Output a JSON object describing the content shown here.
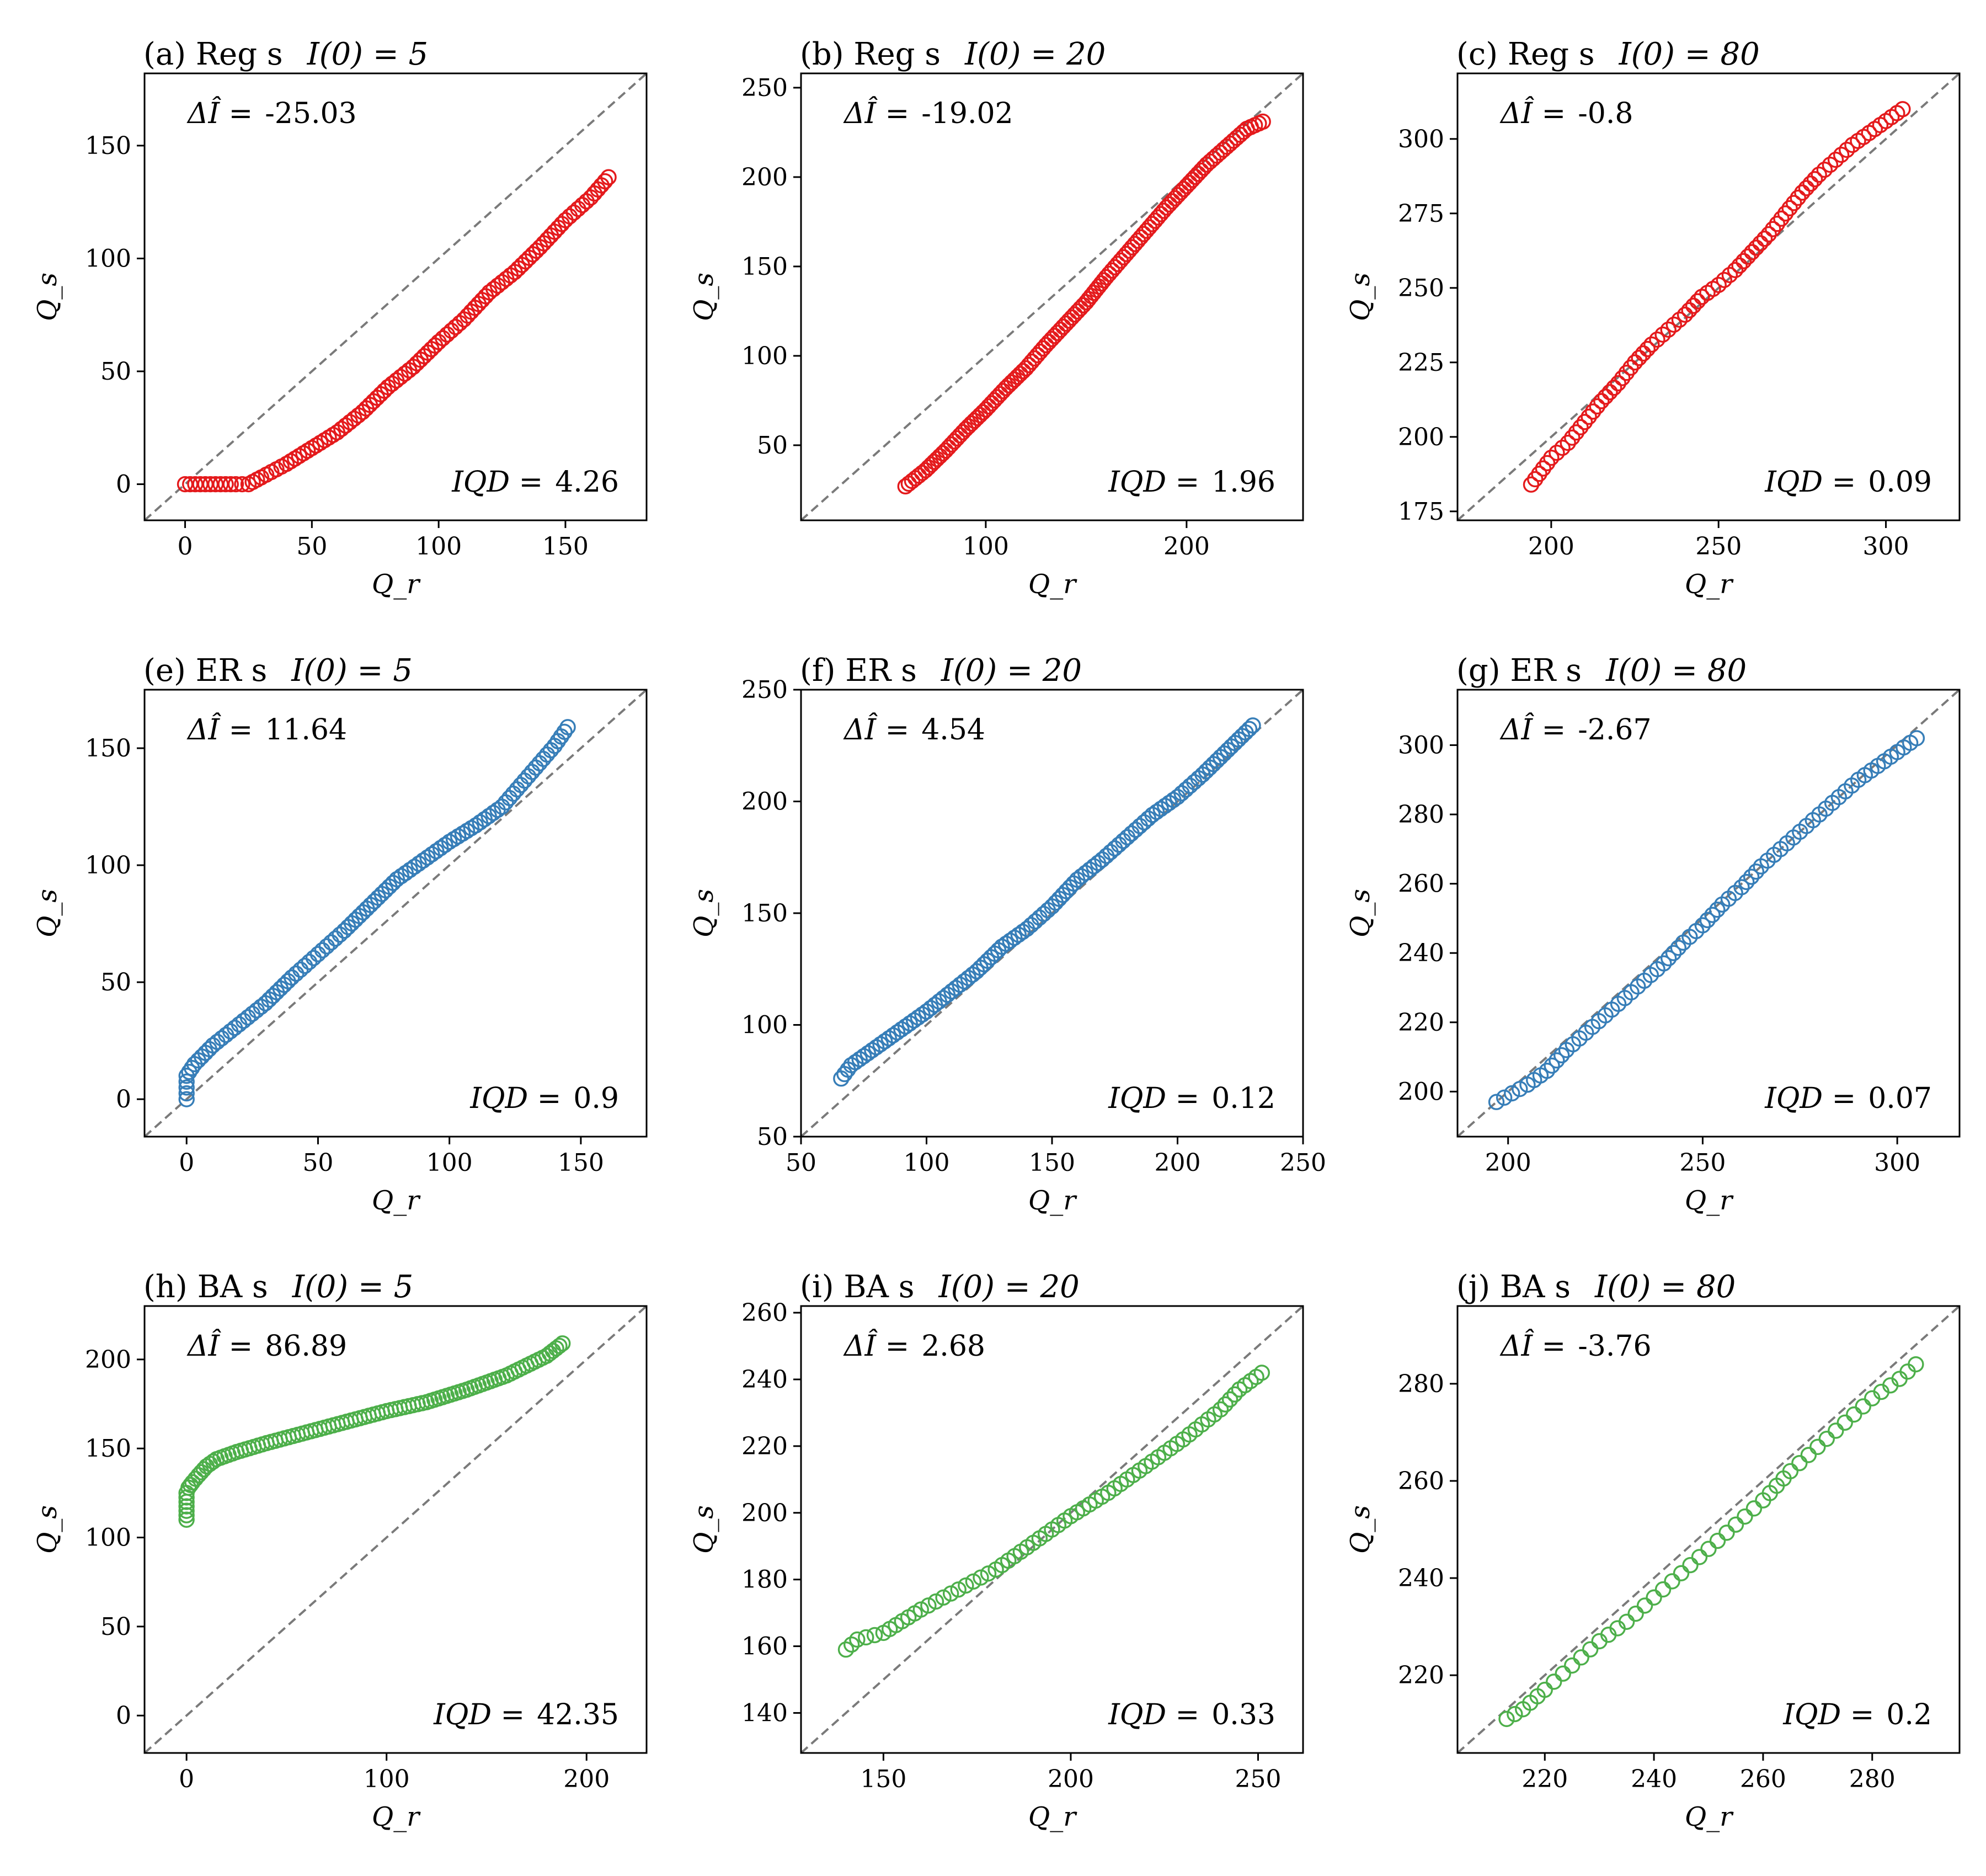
{
  "figure": {
    "marker": "open-circle",
    "diagonal_style": "dashed",
    "diagonal_color": "#7a7a7a"
  },
  "colors": {
    "Reg": "#e41a1c",
    "ER": "#377eb8",
    "BA": "#4daf4a"
  },
  "chart_data": [
    {
      "type": "scatter",
      "panel": "(a)",
      "title_prefix": "(a) Reg s",
      "init_label": "I(0) = 5",
      "xlabel": "Q_r",
      "ylabel": "Q_s",
      "xlim": [
        -16,
        182
      ],
      "ylim": [
        -16,
        182
      ],
      "xticks": [
        0,
        50,
        100,
        150
      ],
      "yticks": [
        0,
        50,
        100,
        150
      ],
      "delta_label": "ΔÎ =",
      "delta_value": "-25.03",
      "iqd_label": "IQD =",
      "iqd_value": "4.26",
      "color": "Reg",
      "curve": [
        [
          0,
          0
        ],
        [
          10,
          0
        ],
        [
          20,
          0
        ],
        [
          25,
          0
        ],
        [
          30,
          3
        ],
        [
          40,
          9
        ],
        [
          50,
          16
        ],
        [
          60,
          23
        ],
        [
          70,
          32
        ],
        [
          80,
          43
        ],
        [
          90,
          52
        ],
        [
          100,
          63
        ],
        [
          110,
          73
        ],
        [
          120,
          85
        ],
        [
          130,
          94
        ],
        [
          140,
          105
        ],
        [
          150,
          117
        ],
        [
          160,
          127
        ],
        [
          167,
          136
        ]
      ]
    },
    {
      "type": "scatter",
      "panel": "(b)",
      "title_prefix": "(b) Reg s",
      "init_label": "I(0) = 20",
      "xlabel": "Q_r",
      "ylabel": "Q_s",
      "xlim": [
        8,
        258
      ],
      "ylim": [
        8,
        258
      ],
      "xticks": [
        100,
        200
      ],
      "yticks": [
        50,
        100,
        150,
        200,
        250
      ],
      "delta_label": "ΔÎ =",
      "delta_value": "-19.02",
      "iqd_label": "IQD =",
      "iqd_value": "1.96",
      "color": "Reg",
      "curve": [
        [
          60,
          27
        ],
        [
          70,
          36
        ],
        [
          80,
          47
        ],
        [
          90,
          59
        ],
        [
          100,
          70
        ],
        [
          110,
          82
        ],
        [
          120,
          93
        ],
        [
          130,
          106
        ],
        [
          140,
          118
        ],
        [
          150,
          130
        ],
        [
          160,
          144
        ],
        [
          170,
          157
        ],
        [
          180,
          170
        ],
        [
          190,
          183
        ],
        [
          200,
          195
        ],
        [
          210,
          207
        ],
        [
          220,
          217
        ],
        [
          230,
          227
        ],
        [
          238,
          231
        ]
      ]
    },
    {
      "type": "scatter",
      "panel": "(c)",
      "title_prefix": "(c) Reg s",
      "init_label": "I(0) = 80",
      "xlabel": "Q_r",
      "ylabel": "Q_s",
      "xlim": [
        172,
        322
      ],
      "ylim": [
        172,
        322
      ],
      "xticks": [
        200,
        250,
        300
      ],
      "yticks": [
        175,
        200,
        225,
        250,
        275,
        300
      ],
      "delta_label": "ΔÎ =",
      "delta_value": "-0.8",
      "iqd_label": "IQD =",
      "iqd_value": "0.09",
      "color": "Reg",
      "curve": [
        [
          194,
          184
        ],
        [
          200,
          193
        ],
        [
          205,
          198
        ],
        [
          210,
          205
        ],
        [
          215,
          212
        ],
        [
          220,
          218
        ],
        [
          225,
          225
        ],
        [
          230,
          231
        ],
        [
          235,
          236
        ],
        [
          240,
          241
        ],
        [
          245,
          247
        ],
        [
          250,
          251
        ],
        [
          255,
          256
        ],
        [
          260,
          262
        ],
        [
          265,
          268
        ],
        [
          270,
          275
        ],
        [
          275,
          282
        ],
        [
          280,
          288
        ],
        [
          285,
          293
        ],
        [
          290,
          298
        ],
        [
          295,
          302
        ],
        [
          300,
          306
        ],
        [
          305,
          310
        ]
      ]
    },
    {
      "type": "scatter",
      "panel": "(e)",
      "title_prefix": "(e) ER s",
      "init_label": "I(0) = 5",
      "xlabel": "Q_r",
      "ylabel": "Q_s",
      "xlim": [
        -16,
        175
      ],
      "ylim": [
        -16,
        175
      ],
      "xticks": [
        0,
        50,
        100,
        150
      ],
      "yticks": [
        0,
        50,
        100,
        150
      ],
      "delta_label": "ΔÎ =",
      "delta_value": "11.64",
      "iqd_label": "IQD =",
      "iqd_value": "0.9",
      "color": "ER",
      "curve": [
        [
          0,
          0
        ],
        [
          0,
          5
        ],
        [
          0,
          10
        ],
        [
          3,
          15
        ],
        [
          10,
          23
        ],
        [
          20,
          32
        ],
        [
          30,
          41
        ],
        [
          40,
          52
        ],
        [
          50,
          62
        ],
        [
          60,
          72
        ],
        [
          70,
          83
        ],
        [
          80,
          94
        ],
        [
          90,
          102
        ],
        [
          100,
          110
        ],
        [
          110,
          117
        ],
        [
          120,
          125
        ],
        [
          130,
          138
        ],
        [
          140,
          151
        ],
        [
          145,
          159
        ]
      ]
    },
    {
      "type": "scatter",
      "panel": "(f)",
      "title_prefix": "(f) ER s",
      "init_label": "I(0) = 20",
      "xlabel": "Q_r",
      "ylabel": "Q_s",
      "xlim": [
        50,
        250
      ],
      "ylim": [
        50,
        250
      ],
      "xticks": [
        50,
        100,
        150,
        200,
        250
      ],
      "yticks": [
        50,
        100,
        150,
        200,
        250
      ],
      "delta_label": "ΔÎ =",
      "delta_value": "4.54",
      "iqd_label": "IQD =",
      "iqd_value": "0.12",
      "color": "ER",
      "curve": [
        [
          66,
          76
        ],
        [
          70,
          82
        ],
        [
          80,
          90
        ],
        [
          90,
          98
        ],
        [
          100,
          106
        ],
        [
          110,
          115
        ],
        [
          120,
          124
        ],
        [
          130,
          135
        ],
        [
          140,
          143
        ],
        [
          150,
          153
        ],
        [
          160,
          165
        ],
        [
          170,
          174
        ],
        [
          180,
          184
        ],
        [
          190,
          194
        ],
        [
          200,
          202
        ],
        [
          210,
          212
        ],
        [
          220,
          223
        ],
        [
          230,
          234
        ]
      ]
    },
    {
      "type": "scatter",
      "panel": "(g)",
      "title_prefix": "(g) ER s",
      "init_label": "I(0) = 80",
      "xlabel": "Q_r",
      "ylabel": "Q_s",
      "xlim": [
        187,
        316
      ],
      "ylim": [
        187,
        316
      ],
      "xticks": [
        200,
        250,
        300
      ],
      "yticks": [
        200,
        220,
        240,
        260,
        280,
        300
      ],
      "delta_label": "ΔÎ =",
      "delta_value": "-2.67",
      "iqd_label": "IQD =",
      "iqd_value": "0.07",
      "color": "ER",
      "curve": [
        [
          197,
          197
        ],
        [
          205,
          202
        ],
        [
          210,
          206
        ],
        [
          215,
          212
        ],
        [
          220,
          217
        ],
        [
          225,
          222
        ],
        [
          230,
          227
        ],
        [
          235,
          232
        ],
        [
          240,
          237
        ],
        [
          245,
          243
        ],
        [
          250,
          248
        ],
        [
          255,
          254
        ],
        [
          260,
          259
        ],
        [
          265,
          265
        ],
        [
          270,
          270
        ],
        [
          275,
          275
        ],
        [
          280,
          280
        ],
        [
          285,
          285
        ],
        [
          290,
          290
        ],
        [
          295,
          294
        ],
        [
          300,
          298
        ],
        [
          305,
          302
        ]
      ]
    },
    {
      "type": "scatter",
      "panel": "(h)",
      "title_prefix": "(h) BA s",
      "init_label": "I(0) = 5",
      "xlabel": "Q_r",
      "ylabel": "Q_s",
      "xlim": [
        -21,
        230
      ],
      "ylim": [
        -21,
        230
      ],
      "xticks": [
        0,
        100,
        200
      ],
      "yticks": [
        0,
        50,
        100,
        150,
        200
      ],
      "delta_label": "ΔÎ =",
      "delta_value": "86.89",
      "iqd_label": "IQD =",
      "iqd_value": "42.35",
      "color": "BA",
      "curve": [
        [
          0,
          110
        ],
        [
          0,
          115
        ],
        [
          0,
          120
        ],
        [
          0,
          125
        ],
        [
          1,
          128
        ],
        [
          3,
          131
        ],
        [
          6,
          135
        ],
        [
          10,
          140
        ],
        [
          15,
          144
        ],
        [
          25,
          148
        ],
        [
          40,
          153
        ],
        [
          60,
          159
        ],
        [
          80,
          165
        ],
        [
          100,
          171
        ],
        [
          120,
          176
        ],
        [
          140,
          183
        ],
        [
          160,
          191
        ],
        [
          180,
          202
        ],
        [
          188,
          209
        ]
      ]
    },
    {
      "type": "scatter",
      "panel": "(i)",
      "title_prefix": "(i) BA s",
      "init_label": "I(0) = 20",
      "xlabel": "Q_r",
      "ylabel": "Q_s",
      "xlim": [
        128,
        262
      ],
      "ylim": [
        128,
        262
      ],
      "xticks": [
        150,
        200,
        250
      ],
      "yticks": [
        140,
        160,
        180,
        200,
        220,
        240,
        260
      ],
      "delta_label": "ΔÎ =",
      "delta_value": "2.68",
      "iqd_label": "IQD =",
      "iqd_value": "0.33",
      "color": "BA",
      "curve": [
        [
          140,
          159
        ],
        [
          143,
          162
        ],
        [
          150,
          164
        ],
        [
          160,
          171
        ],
        [
          170,
          177
        ],
        [
          180,
          183
        ],
        [
          190,
          191
        ],
        [
          200,
          199
        ],
        [
          210,
          206
        ],
        [
          220,
          214
        ],
        [
          230,
          222
        ],
        [
          240,
          231
        ],
        [
          245,
          237
        ],
        [
          251,
          242
        ]
      ]
    },
    {
      "type": "scatter",
      "panel": "(j)",
      "title_prefix": "(j) BA s",
      "init_label": "I(0) = 80",
      "xlabel": "Q_r",
      "ylabel": "Q_s",
      "xlim": [
        204,
        296
      ],
      "ylim": [
        204,
        296
      ],
      "xticks": [
        220,
        240,
        260,
        280
      ],
      "yticks": [
        220,
        240,
        260,
        280
      ],
      "delta_label": "ΔÎ =",
      "delta_value": "-3.76",
      "iqd_label": "IQD =",
      "iqd_value": "0.2",
      "color": "BA",
      "curve": [
        [
          213,
          211
        ],
        [
          216,
          213
        ],
        [
          220,
          217
        ],
        [
          225,
          222
        ],
        [
          230,
          227
        ],
        [
          235,
          231
        ],
        [
          240,
          236
        ],
        [
          245,
          241
        ],
        [
          250,
          246
        ],
        [
          255,
          251
        ],
        [
          260,
          256
        ],
        [
          265,
          262
        ],
        [
          270,
          267
        ],
        [
          275,
          272
        ],
        [
          280,
          277
        ],
        [
          285,
          281
        ],
        [
          288,
          284
        ]
      ]
    }
  ]
}
